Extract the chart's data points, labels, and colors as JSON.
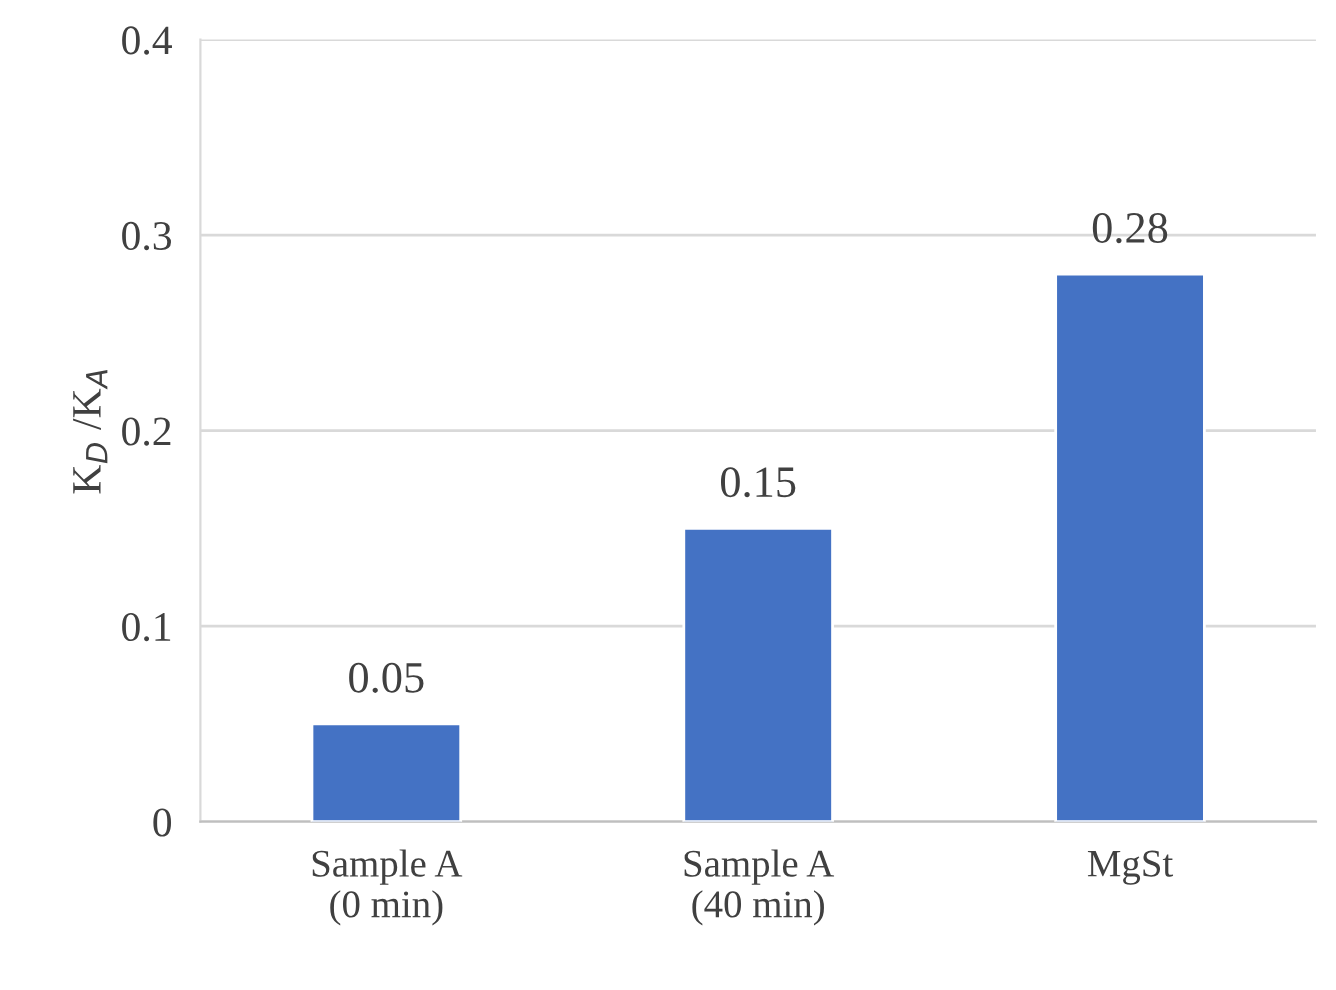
{
  "chart_data": {
    "type": "bar",
    "categories": [
      "Sample A\n(0 min)",
      "Sample A\n(40 min)",
      "MgSt"
    ],
    "values": [
      0.05,
      0.15,
      0.28
    ],
    "color": "#4472c4",
    "ylabel": "K$_{D}$ /K$_{A}$",
    "ylim": [
      0,
      0.4
    ],
    "yticks": [
      {
        "value": 0,
        "label": "0"
      },
      0.1,
      0.2,
      0.3,
      0.4
    ],
    "grid": "y",
    "data_labels": true,
    "legend": false
  }
}
